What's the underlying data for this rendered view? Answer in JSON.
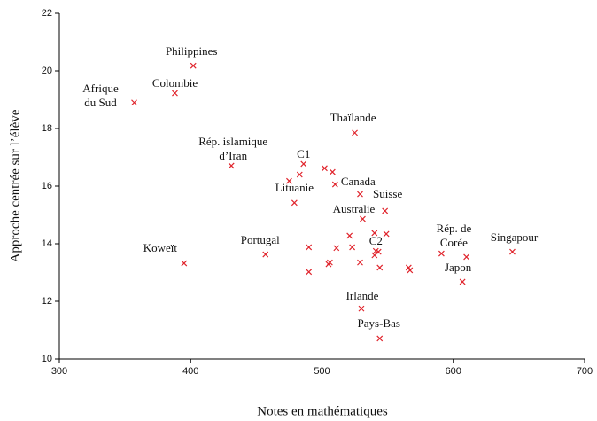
{
  "chart_data": {
    "type": "scatter",
    "x_label": "Notes en mathématiques",
    "y_label": "Approche centrée sur l’élève",
    "color": "#e0242c",
    "xlim": [
      300,
      700
    ],
    "xticks": [
      300,
      400,
      500,
      600,
      700
    ],
    "ylim": [
      10,
      22
    ],
    "yticks": [
      10,
      12,
      14,
      16,
      18,
      20,
      22
    ],
    "x": [
      357,
      388,
      402,
      431,
      395,
      457,
      525,
      486,
      483,
      475,
      479,
      502,
      508,
      510,
      529,
      548,
      531,
      549,
      521,
      540,
      490,
      511,
      523,
      541,
      540,
      543,
      506,
      505,
      529,
      544,
      566,
      567,
      490,
      530,
      544,
      591,
      610,
      607,
      645
    ],
    "y": [
      18.9,
      19.23,
      20.18,
      16.71,
      13.32,
      13.63,
      17.85,
      16.77,
      16.4,
      16.18,
      15.42,
      16.62,
      16.49,
      16.06,
      15.72,
      15.14,
      14.86,
      14.34,
      14.28,
      14.37,
      13.88,
      13.85,
      13.88,
      13.75,
      13.6,
      13.72,
      13.35,
      13.29,
      13.35,
      13.17,
      13.17,
      13.08,
      13.02,
      11.75,
      10.71,
      13.66,
      13.54,
      12.68,
      13.72
    ],
    "labels": [
      "Afrique\ndu Sud",
      "Colombie",
      "Philippines",
      "Rép. islamique\nd’Iran",
      "Koweït",
      "Portugal",
      "Thaïlande",
      "C1",
      null,
      null,
      "Lituanie",
      null,
      null,
      "Canada",
      null,
      "Suisse",
      "Australie",
      null,
      null,
      null,
      null,
      null,
      null,
      "C2",
      null,
      null,
      null,
      null,
      null,
      null,
      null,
      null,
      null,
      "Irlande",
      "Pays-Bas",
      "Rép. de\nCorée",
      null,
      "Japon",
      "Singapour"
    ]
  }
}
